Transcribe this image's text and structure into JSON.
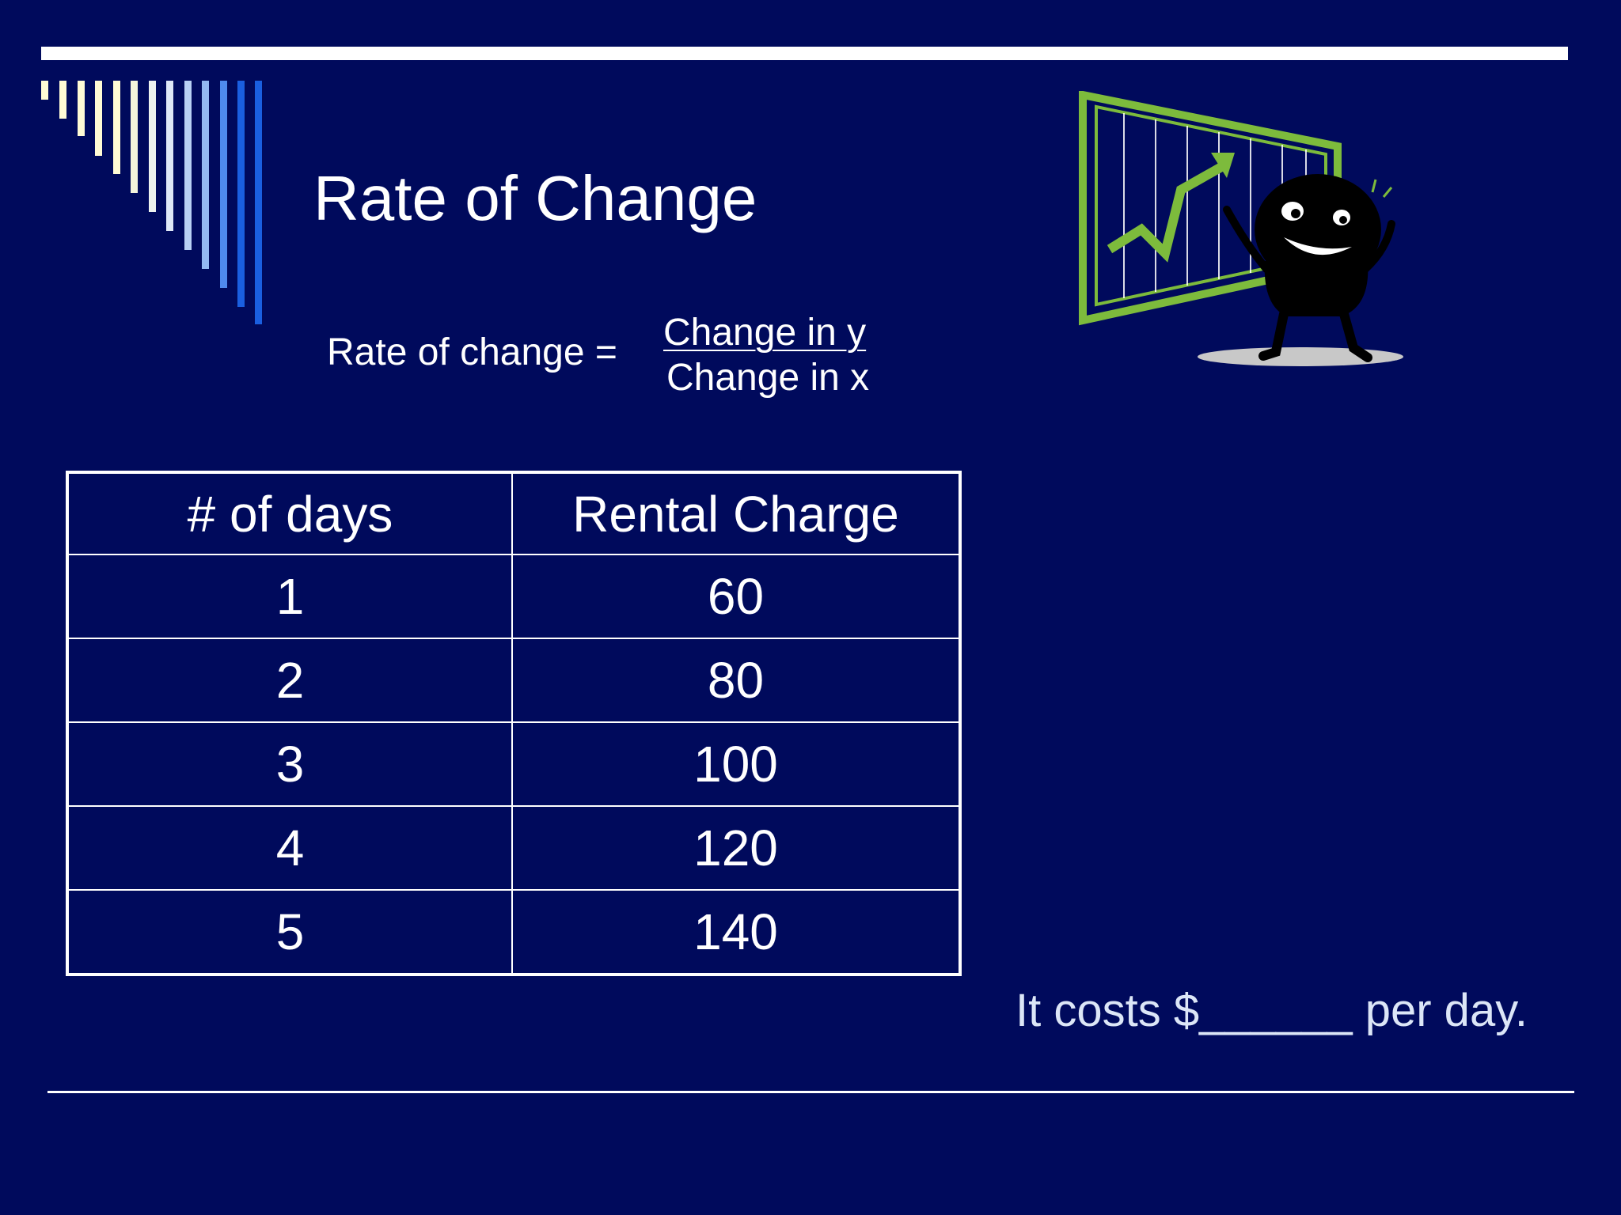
{
  "slide": {
    "title": "Rate of Change",
    "formula": {
      "label": "Rate of change =",
      "numerator": "Change in y",
      "denominator": "Change in x"
    },
    "table": {
      "headers": [
        "# of days",
        "Rental Charge"
      ],
      "rows": [
        [
          "1",
          "60"
        ],
        [
          "2",
          "80"
        ],
        [
          "3",
          "100"
        ],
        [
          "4",
          "120"
        ],
        [
          "5",
          "140"
        ]
      ]
    },
    "caption": "It costs  $______ per day."
  },
  "colors": {
    "background": "#000a5c",
    "text": "#ffffff",
    "accent_green": "#7dbb3c",
    "stripe_blue": "#1a5fe0"
  },
  "icons": {
    "mascot": "cartoon-presenter-with-rising-chart-icon",
    "decoration": "descending-stripes"
  }
}
